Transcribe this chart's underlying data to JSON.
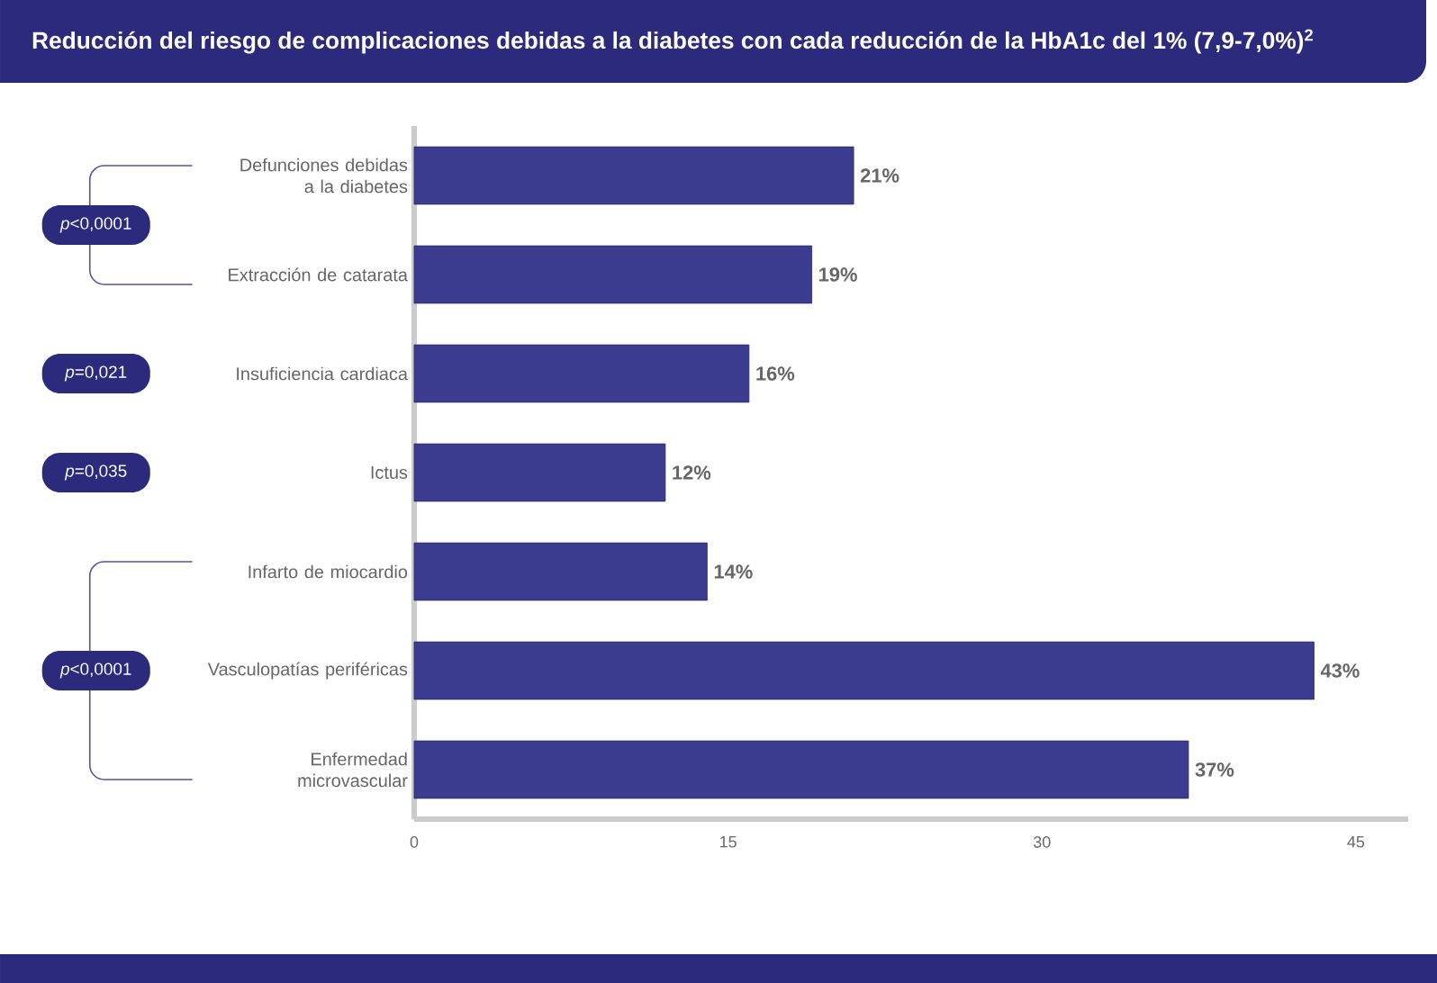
{
  "chart_data": {
    "type": "bar",
    "orientation": "horizontal",
    "title": "Reducción del riesgo de complicaciones debidas a la diabetes con cada reducción de la HbA1c del 1% (7,9-7,0%)$^{2}$",
    "categories": [
      "Defunciones debidas a la diabetes",
      "Extracción de catarata",
      "Insuficiencia cardiaca",
      "Ictus",
      "Infarto de miocardio",
      "Vasculopatías periféricas",
      "Enfermedad microvascular"
    ],
    "values": [
      21,
      19,
      16,
      12,
      14,
      43,
      37
    ],
    "value_labels": [
      "21%",
      "19%",
      "16%",
      "12%",
      "14%",
      "43%",
      "37%"
    ],
    "color": "#3b3b8f",
    "xlim": [
      0,
      47.5
    ],
    "xticks": [
      0,
      15,
      30,
      45
    ],
    "grid": false,
    "annotations": [
      "*p*<0,0001",
      "*p*=0,021",
      "*p*=0,035",
      "*p*<0,0001"
    ]
  }
}
